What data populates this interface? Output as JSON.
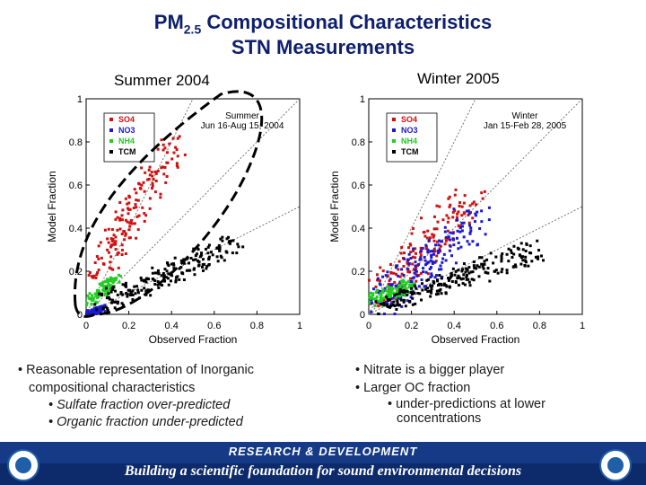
{
  "slide": {
    "title_main": "PM",
    "title_sub": "2.5",
    "title_rest": " Compositional Characteristics",
    "title_line2": "STN Measurements",
    "panel_left_title": "Summer 2004",
    "panel_right_title": "Winter 2005",
    "bullets_left": {
      "b1_line1": "• Reasonable representation of Inorganic",
      "b1_line2": "compositional characteristics",
      "s1": "• Sulfate fraction over-predicted",
      "s2": "• Organic fraction under-predicted"
    },
    "bullets_right": {
      "b1": "• Nitrate is a bigger player",
      "b2": "• Larger OC fraction",
      "s1_line1": "• under-predictions at lower",
      "s1_line2": "concentrations"
    },
    "footer_line1": "RESEARCH & DEVELOPMENT",
    "footer_line2": "Building a scientific foundation for sound environmental decisions",
    "colors": {
      "title": "#0d1f6e",
      "SO4": "#d01010",
      "NO3": "#1a1ad0",
      "NH4": "#22cc22",
      "TCM": "#000000",
      "footer": "#0d2a6b"
    }
  },
  "chart_data": [
    {
      "type": "scatter",
      "period": "Summer 2004",
      "inset_label_line1": "Summer",
      "inset_label_line2": "Jun 16-Aug 15, 2004",
      "xlabel": "Observed Fraction",
      "ylabel": "Model Fraction",
      "xlim": [
        0,
        1
      ],
      "ylim": [
        0,
        1
      ],
      "xticks": [
        "0",
        "0.2",
        "0.4",
        "0.6",
        "0.8",
        "1"
      ],
      "yticks": [
        "0",
        "0.2",
        "0.4",
        "0.6",
        "0.8",
        "1"
      ],
      "reference_lines": [
        "1:1",
        "1:2",
        "2:1"
      ],
      "series": [
        {
          "name": "SO4",
          "color": "#d01010",
          "cx": [
            0.05,
            0.42
          ],
          "cy": [
            0.2,
            0.8
          ],
          "spread": 0.06,
          "n": 160
        },
        {
          "name": "NO3",
          "color": "#1a1ad0",
          "cx": [
            0.01,
            0.08
          ],
          "cy": [
            0.0,
            0.03
          ],
          "spread": 0.015,
          "n": 70
        },
        {
          "name": "NH4",
          "color": "#22cc22",
          "cx": [
            0.01,
            0.14
          ],
          "cy": [
            0.06,
            0.16
          ],
          "spread": 0.025,
          "n": 90
        },
        {
          "name": "TCM",
          "color": "#000000",
          "cx": [
            0.08,
            0.7
          ],
          "cy": [
            0.06,
            0.32
          ],
          "spread": 0.05,
          "n": 200
        }
      ],
      "annotation": "dashed ellipse around SO4 and NH4 clusters"
    },
    {
      "type": "scatter",
      "period": "Winter 2005",
      "inset_label_line1": "Winter",
      "inset_label_line2": "Jan 15-Feb 28, 2005",
      "xlabel": "Observed Fraction",
      "ylabel": "Model Fraction",
      "xlim": [
        0,
        1
      ],
      "ylim": [
        0,
        1
      ],
      "xticks": [
        "0",
        "0.2",
        "0.4",
        "0.6",
        "0.8",
        "1"
      ],
      "yticks": [
        "0",
        "0.2",
        "0.4",
        "0.6",
        "0.8",
        "1"
      ],
      "reference_lines": [
        "1:1",
        "1:2",
        "2:1"
      ],
      "series": [
        {
          "name": "SO4",
          "color": "#d01010",
          "cx": [
            0.05,
            0.5
          ],
          "cy": [
            0.1,
            0.55
          ],
          "spread": 0.08,
          "n": 160
        },
        {
          "name": "NO3",
          "color": "#1a1ad0",
          "cx": [
            0.05,
            0.5
          ],
          "cy": [
            0.05,
            0.45
          ],
          "spread": 0.08,
          "n": 180
        },
        {
          "name": "NH4",
          "color": "#22cc22",
          "cx": [
            0.01,
            0.2
          ],
          "cy": [
            0.06,
            0.14
          ],
          "spread": 0.03,
          "n": 110
        },
        {
          "name": "TCM",
          "color": "#000000",
          "cx": [
            0.05,
            0.8
          ],
          "cy": [
            0.04,
            0.3
          ],
          "spread": 0.05,
          "n": 220
        }
      ]
    }
  ]
}
